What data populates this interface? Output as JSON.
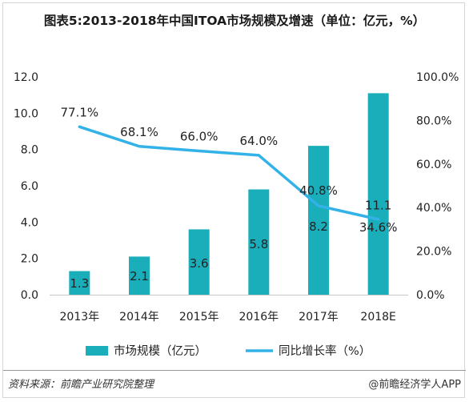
{
  "title": "图表5:2013-2018年中国ITOA市场规模及增速（单位：亿元，%）",
  "source": "资料来源：前瞻产业研究院整理",
  "brand": "@前瞻经济学人APP",
  "colors": {
    "bar": "#1aaebb",
    "line": "#33b2e8"
  },
  "chart_data": {
    "type": "bar",
    "categories": [
      "2013年",
      "2014年",
      "2015年",
      "2016年",
      "2017年",
      "2018E"
    ],
    "series": [
      {
        "name": "市场规模（亿元）",
        "type": "bar",
        "axis": "left",
        "values": [
          1.3,
          2.1,
          3.6,
          5.8,
          8.2,
          11.1
        ],
        "labels": [
          "1.3",
          "2.1",
          "3.6",
          "5.8",
          "8.2",
          "11.1"
        ]
      },
      {
        "name": "同比增长率（%）",
        "type": "line",
        "axis": "right",
        "values": [
          77.1,
          68.1,
          66.0,
          64.0,
          40.8,
          34.6
        ],
        "labels": [
          "77.1%",
          "68.1%",
          "66.0%",
          "64.0%",
          "40.8%",
          "34.6%"
        ]
      }
    ],
    "y_left": {
      "ticks": [
        "0.0",
        "2.0",
        "4.0",
        "6.0",
        "8.0",
        "10.0",
        "12.0"
      ],
      "ylim": [
        0,
        12
      ]
    },
    "y_right": {
      "ticks": [
        "0.0%",
        "20.0%",
        "40.0%",
        "60.0%",
        "80.0%",
        "100.0%"
      ],
      "ylim": [
        0,
        100
      ]
    },
    "legend": "bottom",
    "grid": false
  }
}
